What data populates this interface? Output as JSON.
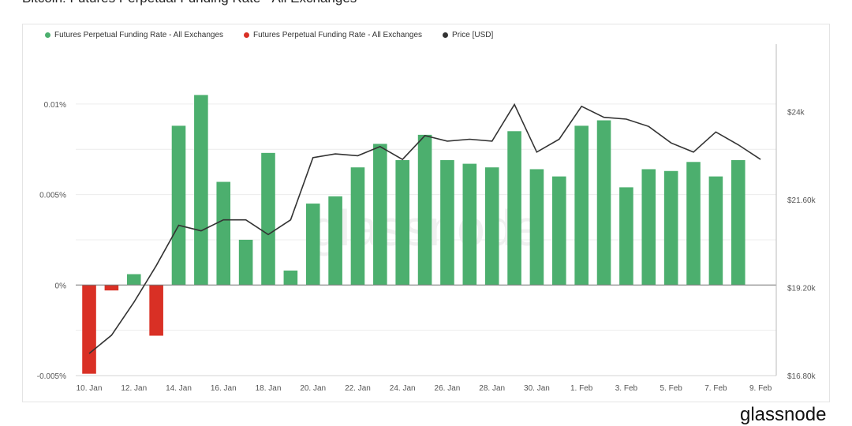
{
  "page": {
    "title": "Bitcoin: Futures Perpetual Funding Rate - All Exchanges",
    "footer_logo": "glassnode",
    "watermark": "glassnode"
  },
  "colors": {
    "positive": "#4caf6e",
    "negative": "#d93025",
    "price": "#333333",
    "grid": "#ececec",
    "axis": "#555555"
  },
  "legend": [
    {
      "label": "Futures Perpetual Funding Rate - All Exchanges",
      "color": "#4caf6e"
    },
    {
      "label": "Futures Perpetual Funding Rate - All Exchanges",
      "color": "#d93025"
    },
    {
      "label": "Price [USD]",
      "color": "#333333"
    }
  ],
  "chart_data": {
    "type": "bar",
    "title": "Bitcoin: Futures Perpetual Funding Rate - All Exchanges",
    "x_tick_labels": [
      "10. Jan",
      "12. Jan",
      "14. Jan",
      "16. Jan",
      "18. Jan",
      "20. Jan",
      "22. Jan",
      "24. Jan",
      "26. Jan",
      "28. Jan",
      "30. Jan",
      "1. Feb",
      "3. Feb",
      "5. Feb",
      "7. Feb",
      "9. Feb"
    ],
    "y_left_ticks": [
      {
        "value": 0.01,
        "label": "0.01%"
      },
      {
        "value": 0.005,
        "label": "0.005%"
      },
      {
        "value": 0,
        "label": "0%"
      },
      {
        "value": -0.005,
        "label": "-0.005%"
      }
    ],
    "y_right_ticks": [
      {
        "value": 24000,
        "label": "$24k"
      },
      {
        "value": 21600,
        "label": "$21.60k"
      },
      {
        "value": 19200,
        "label": "$19.20k"
      },
      {
        "value": 16800,
        "label": "$16.80k"
      }
    ],
    "ylim_left": [
      -0.005,
      0.012
    ],
    "ylim_right": [
      16800,
      25200
    ],
    "grid": true,
    "legend_position": "top-left",
    "dates": [
      "10. Jan",
      "11. Jan",
      "12. Jan",
      "13. Jan",
      "14. Jan",
      "15. Jan",
      "16. Jan",
      "17. Jan",
      "18. Jan",
      "19. Jan",
      "20. Jan",
      "21. Jan",
      "22. Jan",
      "23. Jan",
      "24. Jan",
      "25. Jan",
      "26. Jan",
      "27. Jan",
      "28. Jan",
      "29. Jan",
      "30. Jan",
      "31. Jan",
      "1. Feb",
      "2. Feb",
      "3. Feb",
      "4. Feb",
      "5. Feb",
      "6. Feb",
      "7. Feb",
      "8. Feb",
      "9. Feb"
    ],
    "series": [
      {
        "name": "Futures Perpetual Funding Rate - All Exchanges",
        "axis": "left",
        "unit": "%",
        "values": [
          -0.0049,
          -0.0003,
          0.0006,
          -0.0028,
          0.0088,
          0.0105,
          0.0057,
          0.0025,
          0.0073,
          0.0008,
          0.0045,
          0.0049,
          0.0065,
          0.0078,
          0.0069,
          0.0083,
          0.0069,
          0.0067,
          0.0065,
          0.0085,
          0.0064,
          0.006,
          0.0088,
          0.0091,
          0.0054,
          0.0064,
          0.0063,
          0.0068,
          0.006,
          0.0069,
          null
        ]
      },
      {
        "name": "Price [USD]",
        "axis": "right",
        "type": "line",
        "values": [
          17400,
          17900,
          18800,
          19800,
          20900,
          20750,
          21050,
          21050,
          20650,
          21050,
          22750,
          22850,
          22800,
          23050,
          22700,
          23350,
          23200,
          23250,
          23200,
          24200,
          22900,
          23250,
          24150,
          23850,
          23800,
          23600,
          23150,
          22900,
          23450,
          23100,
          22700
        ]
      }
    ]
  }
}
